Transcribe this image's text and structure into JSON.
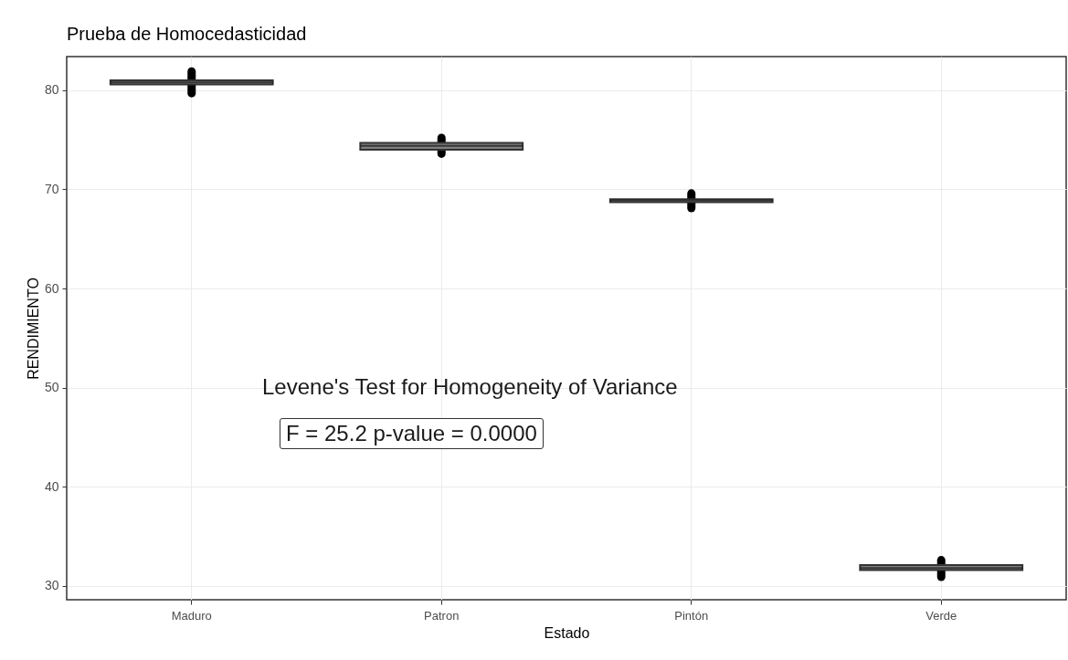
{
  "chart_data": {
    "type": "box",
    "title": "Prueba de Homocedasticidad",
    "xlabel": "Estado",
    "ylabel": "RENDIMIENTO",
    "categories": [
      "Maduro",
      "Patron",
      "Pintón",
      "Verde"
    ],
    "boxes": [
      {
        "low": 79.7,
        "q1": 80.6,
        "median": 80.8,
        "q3": 81.0,
        "high": 81.9
      },
      {
        "low": 73.6,
        "q1": 74.0,
        "median": 74.4,
        "q3": 74.7,
        "high": 75.2
      },
      {
        "low": 68.1,
        "q1": 68.7,
        "median": 68.9,
        "q3": 69.0,
        "high": 69.6
      },
      {
        "low": 30.9,
        "q1": 31.6,
        "median": 31.8,
        "q3": 32.1,
        "high": 32.6
      }
    ],
    "color": "#7f7f7f",
    "ylim": [
      28.6,
      83.4
    ],
    "yticks": [
      30,
      40,
      50,
      60,
      70,
      80
    ],
    "grid": true,
    "annotations": [
      "Levene's Test for Homogeneity of Variance",
      "F = 25.2 p-value = 0.0000"
    ]
  }
}
